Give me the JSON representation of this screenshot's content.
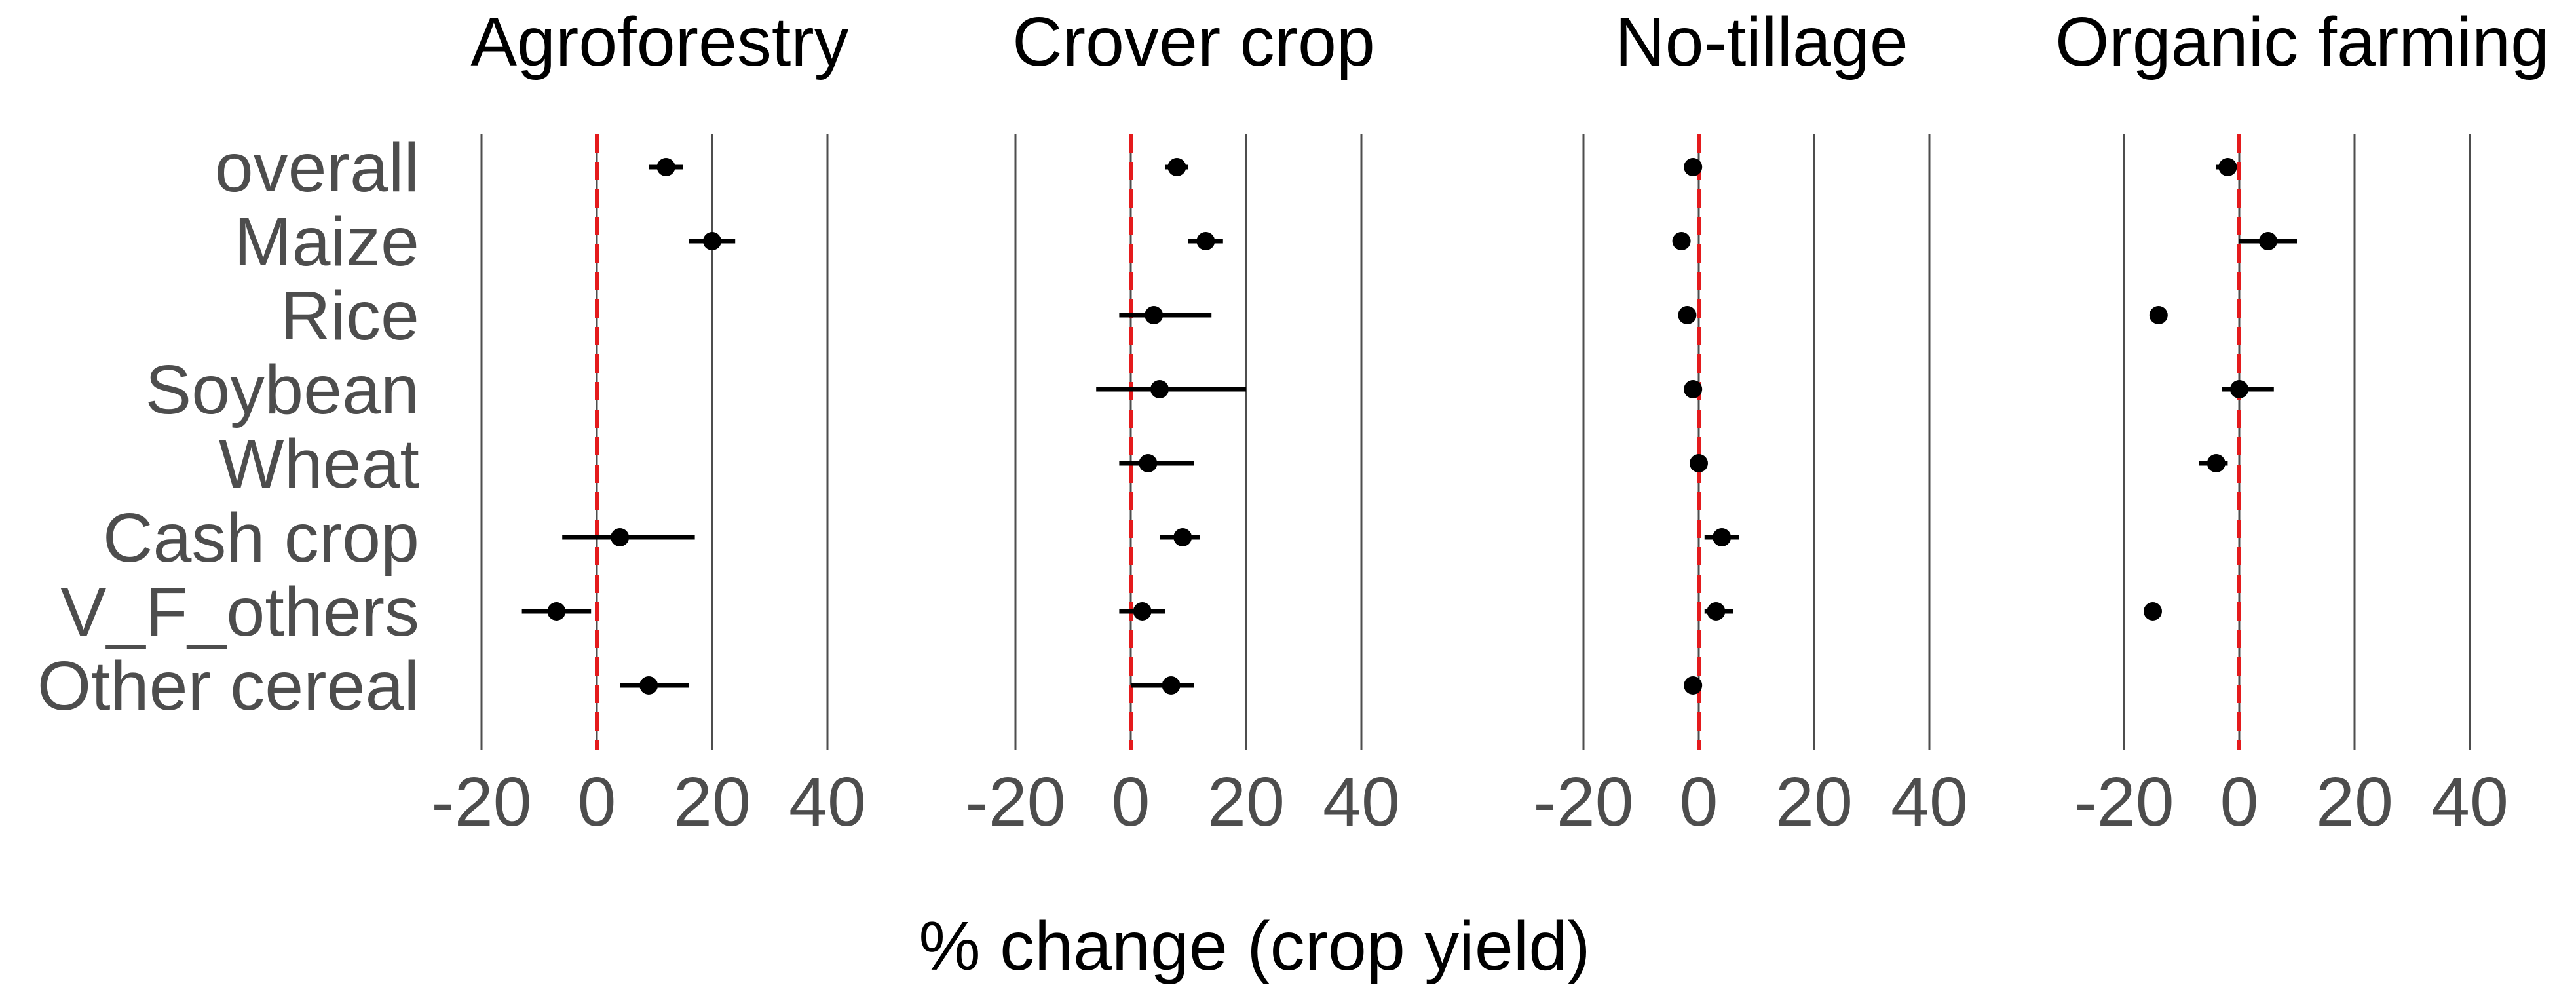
{
  "chart_data": {
    "type": "scatter",
    "subtype": "forest-plot-faceted",
    "xlabel": "% change (crop yield)",
    "categories": [
      "overall",
      "Maize",
      "Rice",
      "Soybean",
      "Wheat",
      "Cash crop",
      "V_F_others",
      "Other cereal"
    ],
    "xticks": [
      "-20",
      "0",
      "20",
      "40"
    ],
    "xlim": [
      -30,
      50
    ],
    "reference_line": {
      "x": 0,
      "color": "#e41a1c",
      "style": "dashed"
    },
    "grid": "vertical major lines",
    "point_color": "#000000",
    "panels": [
      {
        "title": "Agroforestry",
        "points": [
          {
            "category": "overall",
            "estimate": 12,
            "low": 9,
            "high": 15
          },
          {
            "category": "Maize",
            "estimate": 20,
            "low": 16,
            "high": 24
          },
          {
            "category": "Rice",
            "estimate": null,
            "low": null,
            "high": null
          },
          {
            "category": "Soybean",
            "estimate": null,
            "low": null,
            "high": null
          },
          {
            "category": "Wheat",
            "estimate": null,
            "low": null,
            "high": null
          },
          {
            "category": "Cash crop",
            "estimate": 4,
            "low": -6,
            "high": 17
          },
          {
            "category": "V_F_others",
            "estimate": -7,
            "low": -13,
            "high": -1
          },
          {
            "category": "Other cereal",
            "estimate": 9,
            "low": 4,
            "high": 16
          }
        ]
      },
      {
        "title": "Crover crop",
        "points": [
          {
            "category": "overall",
            "estimate": 8,
            "low": 6,
            "high": 10
          },
          {
            "category": "Maize",
            "estimate": 13,
            "low": 10,
            "high": 16
          },
          {
            "category": "Rice",
            "estimate": 4,
            "low": -2,
            "high": 14
          },
          {
            "category": "Soybean",
            "estimate": 5,
            "low": -6,
            "high": 20
          },
          {
            "category": "Wheat",
            "estimate": 3,
            "low": -2,
            "high": 11
          },
          {
            "category": "Cash crop",
            "estimate": 9,
            "low": 5,
            "high": 12
          },
          {
            "category": "V_F_others",
            "estimate": 2,
            "low": -2,
            "high": 6
          },
          {
            "category": "Other cereal",
            "estimate": 7,
            "low": 0,
            "high": 11
          }
        ]
      },
      {
        "title": "No-tillage",
        "points": [
          {
            "category": "overall",
            "estimate": -1,
            "low": -2,
            "high": 0
          },
          {
            "category": "Maize",
            "estimate": -3,
            "low": -4,
            "high": -2
          },
          {
            "category": "Rice",
            "estimate": -2,
            "low": -3,
            "high": -1
          },
          {
            "category": "Soybean",
            "estimate": -1,
            "low": -2,
            "high": 0
          },
          {
            "category": "Wheat",
            "estimate": 0,
            "low": -1,
            "high": 1
          },
          {
            "category": "Cash crop",
            "estimate": 4,
            "low": 1,
            "high": 7
          },
          {
            "category": "V_F_others",
            "estimate": 3,
            "low": 1,
            "high": 6
          },
          {
            "category": "Other cereal",
            "estimate": -1,
            "low": -2,
            "high": 0
          }
        ]
      },
      {
        "title": "Organic farming",
        "points": [
          {
            "category": "overall",
            "estimate": -2,
            "low": -4,
            "high": -1
          },
          {
            "category": "Maize",
            "estimate": 5,
            "low": 0,
            "high": 10
          },
          {
            "category": "Rice",
            "estimate": -14,
            "low": -15,
            "high": -13
          },
          {
            "category": "Soybean",
            "estimate": 0,
            "low": -3,
            "high": 6
          },
          {
            "category": "Wheat",
            "estimate": -4,
            "low": -7,
            "high": -2
          },
          {
            "category": "Cash crop",
            "estimate": null,
            "low": null,
            "high": null
          },
          {
            "category": "V_F_others",
            "estimate": -15,
            "low": -16,
            "high": -14
          },
          {
            "category": "Other cereal",
            "estimate": null,
            "low": null,
            "high": null
          }
        ]
      }
    ]
  }
}
